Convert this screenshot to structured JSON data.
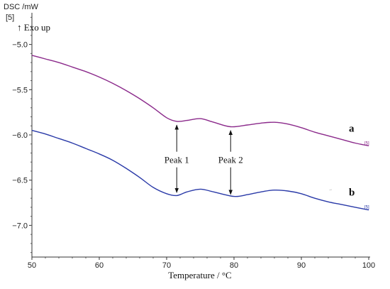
{
  "chart_data": {
    "type": "line",
    "ylabel": "DSC /mW",
    "y_unit_marker": "[5]",
    "direction_note": "↑ Exo up",
    "xlabel": "Temperature / °C",
    "xlim": [
      50,
      100
    ],
    "ylim": [
      -7.35,
      -4.65
    ],
    "x_ticks": [
      50,
      60,
      70,
      80,
      90,
      100
    ],
    "y_ticks": [
      -5.0,
      -5.5,
      -6.0,
      -6.5,
      -7.0
    ],
    "y_tick_labels": [
      "−5.0",
      "−5.5",
      "−6.0",
      "−6.5",
      "−7.0"
    ],
    "grid": false,
    "series": [
      {
        "name": "a",
        "color": "#8b2a8b",
        "end_marker": "[5]",
        "x": [
          50,
          52,
          54,
          56,
          58,
          60,
          62,
          64,
          66,
          68,
          70,
          71.5,
          73,
          75,
          77,
          79.5,
          82,
          84,
          86,
          88,
          90,
          92,
          94,
          96,
          98,
          100
        ],
        "y": [
          -5.12,
          -5.16,
          -5.2,
          -5.25,
          -5.3,
          -5.36,
          -5.43,
          -5.51,
          -5.6,
          -5.7,
          -5.81,
          -5.85,
          -5.84,
          -5.82,
          -5.86,
          -5.91,
          -5.89,
          -5.87,
          -5.86,
          -5.88,
          -5.92,
          -5.97,
          -6.01,
          -6.05,
          -6.09,
          -6.12
        ]
      },
      {
        "name": "b",
        "color": "#2a3aa8",
        "end_marker": "[5]",
        "x": [
          50,
          52,
          54,
          56,
          58,
          60,
          62,
          64,
          66,
          68,
          70,
          71.5,
          73,
          75,
          77,
          80,
          82,
          84,
          86,
          88,
          90,
          92,
          94,
          96,
          98,
          100
        ],
        "y": [
          -5.95,
          -5.99,
          -6.04,
          -6.09,
          -6.15,
          -6.21,
          -6.28,
          -6.37,
          -6.47,
          -6.58,
          -6.65,
          -6.67,
          -6.63,
          -6.6,
          -6.63,
          -6.68,
          -6.66,
          -6.63,
          -6.61,
          -6.62,
          -6.65,
          -6.7,
          -6.74,
          -6.77,
          -6.8,
          -6.83
        ]
      }
    ],
    "annotations": [
      {
        "text": "Peak 1",
        "x": 71.5,
        "arrow_up_y": -5.86,
        "arrow_down_y": -6.66,
        "label_y": -6.28
      },
      {
        "text": "Peak 2",
        "x": 79.5,
        "arrow_up_y": -5.92,
        "arrow_down_y": -6.68,
        "label_y": -6.28
      }
    ],
    "extra_mark": "→"
  }
}
